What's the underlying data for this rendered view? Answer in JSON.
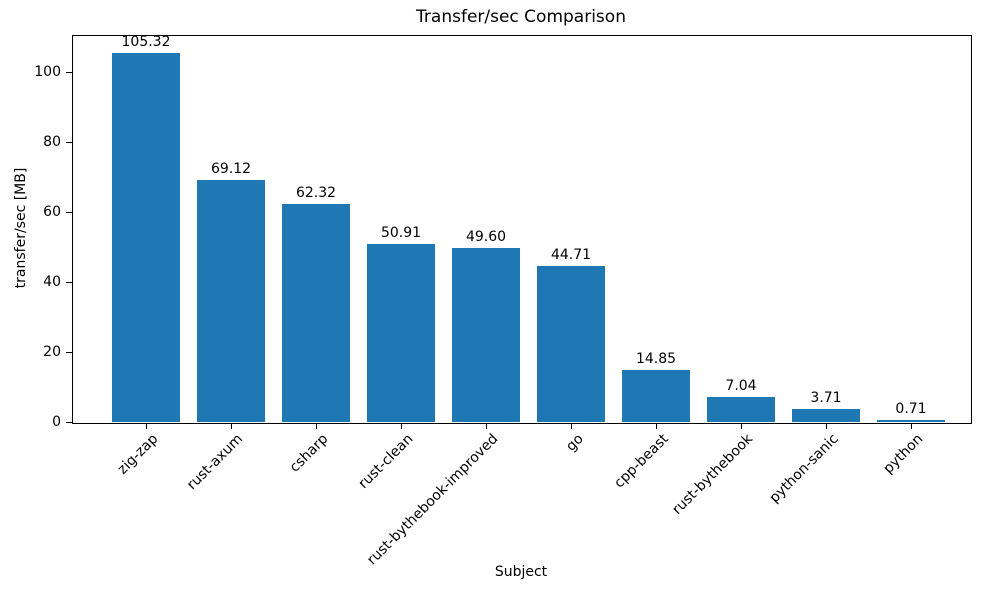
{
  "chart_data": {
    "type": "bar",
    "title": "Transfer/sec Comparison",
    "xlabel": "Subject",
    "ylabel": "transfer/sec [MB]",
    "categories": [
      "zig-zap",
      "rust-axum",
      "csharp",
      "rust-clean",
      "rust-bythebook-improved",
      "go",
      "cpp-beast",
      "rust-bythebook",
      "python-sanic",
      "python"
    ],
    "values": [
      105.32,
      69.12,
      62.32,
      50.91,
      49.6,
      44.71,
      14.85,
      7.04,
      3.71,
      0.71
    ],
    "value_labels": [
      "105.32",
      "69.12",
      "62.32",
      "50.91",
      "49.60",
      "44.71",
      "14.85",
      "7.04",
      "3.71",
      "0.71"
    ],
    "yticks": [
      0,
      20,
      40,
      60,
      80,
      100
    ],
    "ylim": [
      0,
      110.6
    ],
    "bar_color": "#1f77b4",
    "text_color": "#000000",
    "grid": false,
    "legend": null,
    "x_tick_rotation_deg": 45
  }
}
